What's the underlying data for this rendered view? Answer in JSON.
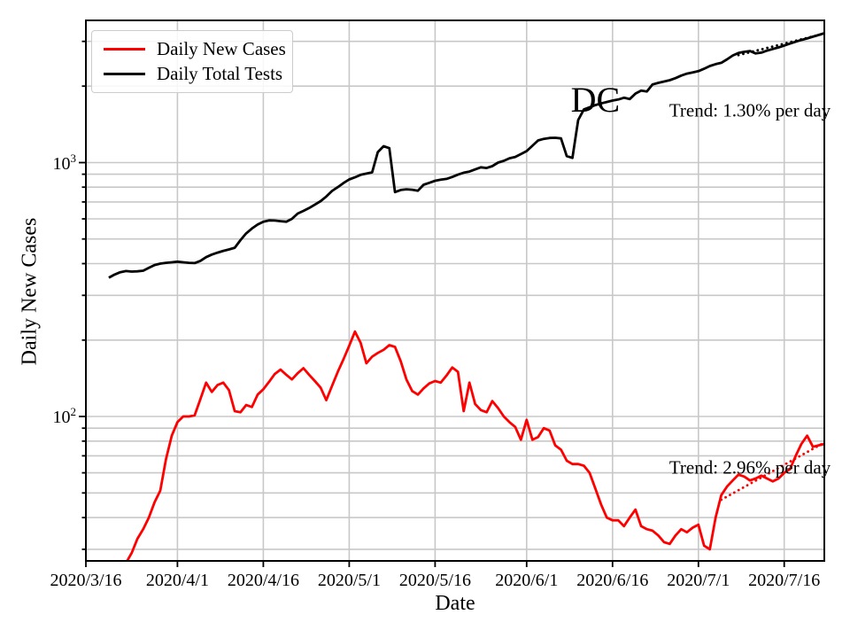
{
  "chart_data": {
    "type": "line",
    "title": "",
    "xlabel": "Date",
    "ylabel": "Daily New Cases",
    "y_scale": "log",
    "ylim": [
      27,
      3630
    ],
    "xlim": [
      "2020/3/16",
      "2020/7/23"
    ],
    "grid": "on",
    "legend_position": "upper left",
    "grid_color": "#c8c8c8",
    "x_ticks": [
      "2020/3/16",
      "2020/4/1",
      "2020/4/16",
      "2020/5/1",
      "2020/5/16",
      "2020/6/1",
      "2020/6/16",
      "2020/7/1",
      "2020/7/16"
    ],
    "y_ticks": [
      {
        "value": 100,
        "base": "10",
        "exp": "2"
      },
      {
        "value": 1000,
        "base": "10",
        "exp": "3"
      }
    ],
    "legend": [
      {
        "label": "Daily New Cases",
        "color": "#ff0000"
      },
      {
        "label": "Daily Total Tests",
        "color": "#000000"
      }
    ],
    "annotations": [
      {
        "text": "DC",
        "date": "2020/6/13",
        "value": 1760,
        "size": 40
      },
      {
        "text": "Trend: 1.30% per day",
        "date": "2020/7/10",
        "value": 1600,
        "size": 21
      },
      {
        "text": "Trend: 2.96% per day",
        "date": "2020/7/10",
        "value": 63,
        "size": 21
      }
    ],
    "series": [
      {
        "name": "Daily New Cases",
        "color": "#ff0000",
        "style": "solid",
        "points": [
          [
            "2020/3/22",
            24
          ],
          [
            "2020/3/23",
            26.5
          ],
          [
            "2020/3/24",
            29
          ],
          [
            "2020/3/25",
            33
          ],
          [
            "2020/3/26",
            36
          ],
          [
            "2020/3/27",
            40
          ],
          [
            "2020/3/28",
            46
          ],
          [
            "2020/3/29",
            51
          ],
          [
            "2020/3/30",
            68
          ],
          [
            "2020/3/31",
            84
          ],
          [
            "2020/4/1",
            95
          ],
          [
            "2020/4/2",
            100
          ],
          [
            "2020/4/3",
            100
          ],
          [
            "2020/4/4",
            101
          ],
          [
            "2020/4/5",
            117
          ],
          [
            "2020/4/6",
            136
          ],
          [
            "2020/4/7",
            125
          ],
          [
            "2020/4/8",
            133
          ],
          [
            "2020/4/9",
            136
          ],
          [
            "2020/4/10",
            127
          ],
          [
            "2020/4/11",
            105
          ],
          [
            "2020/4/12",
            104
          ],
          [
            "2020/4/13",
            111
          ],
          [
            "2020/4/14",
            109
          ],
          [
            "2020/4/15",
            122
          ],
          [
            "2020/4/16",
            128
          ],
          [
            "2020/4/17",
            137
          ],
          [
            "2020/4/18",
            147
          ],
          [
            "2020/4/19",
            153
          ],
          [
            "2020/4/20",
            146
          ],
          [
            "2020/4/21",
            140
          ],
          [
            "2020/4/22",
            148
          ],
          [
            "2020/4/23",
            155
          ],
          [
            "2020/4/24",
            146
          ],
          [
            "2020/4/25",
            138
          ],
          [
            "2020/4/26",
            130
          ],
          [
            "2020/4/27",
            116
          ],
          [
            "2020/4/28",
            132
          ],
          [
            "2020/4/29",
            150
          ],
          [
            "2020/4/30",
            168
          ],
          [
            "2020/5/1",
            190
          ],
          [
            "2020/5/2",
            216
          ],
          [
            "2020/5/3",
            195
          ],
          [
            "2020/5/4",
            162
          ],
          [
            "2020/5/5",
            172
          ],
          [
            "2020/5/6",
            178
          ],
          [
            "2020/5/7",
            183
          ],
          [
            "2020/5/8",
            191
          ],
          [
            "2020/5/9",
            188
          ],
          [
            "2020/5/10",
            165
          ],
          [
            "2020/5/11",
            140
          ],
          [
            "2020/5/12",
            126
          ],
          [
            "2020/5/13",
            122
          ],
          [
            "2020/5/14",
            129
          ],
          [
            "2020/5/15",
            135
          ],
          [
            "2020/5/16",
            138
          ],
          [
            "2020/5/17",
            136
          ],
          [
            "2020/5/18",
            145
          ],
          [
            "2020/5/19",
            156
          ],
          [
            "2020/5/20",
            150
          ],
          [
            "2020/5/21",
            105
          ],
          [
            "2020/5/22",
            136
          ],
          [
            "2020/5/23",
            112
          ],
          [
            "2020/5/24",
            106
          ],
          [
            "2020/5/25",
            104
          ],
          [
            "2020/5/26",
            115
          ],
          [
            "2020/5/27",
            108
          ],
          [
            "2020/5/28",
            100
          ],
          [
            "2020/5/29",
            95
          ],
          [
            "2020/5/30",
            91
          ],
          [
            "2020/5/31",
            81
          ],
          [
            "2020/6/1",
            97
          ],
          [
            "2020/6/2",
            81
          ],
          [
            "2020/6/3",
            83
          ],
          [
            "2020/6/4",
            90
          ],
          [
            "2020/6/5",
            88
          ],
          [
            "2020/6/6",
            77
          ],
          [
            "2020/6/7",
            74
          ],
          [
            "2020/6/8",
            67
          ],
          [
            "2020/6/9",
            65
          ],
          [
            "2020/6/10",
            65
          ],
          [
            "2020/6/11",
            64
          ],
          [
            "2020/6/12",
            60
          ],
          [
            "2020/6/13",
            52
          ],
          [
            "2020/6/14",
            45
          ],
          [
            "2020/6/15",
            40
          ],
          [
            "2020/6/16",
            39
          ],
          [
            "2020/6/17",
            39
          ],
          [
            "2020/6/18",
            37
          ],
          [
            "2020/6/19",
            40
          ],
          [
            "2020/6/20",
            43
          ],
          [
            "2020/6/21",
            37
          ],
          [
            "2020/6/22",
            36
          ],
          [
            "2020/6/23",
            35.5
          ],
          [
            "2020/6/24",
            34
          ],
          [
            "2020/6/25",
            32
          ],
          [
            "2020/6/26",
            31.5
          ],
          [
            "2020/6/27",
            34
          ],
          [
            "2020/6/28",
            36
          ],
          [
            "2020/6/29",
            35
          ],
          [
            "2020/6/30",
            36.5
          ],
          [
            "2020/7/1",
            37.5
          ],
          [
            "2020/7/2",
            31
          ],
          [
            "2020/7/3",
            30
          ],
          [
            "2020/7/4",
            40
          ],
          [
            "2020/7/5",
            49
          ],
          [
            "2020/7/6",
            53
          ],
          [
            "2020/7/7",
            56
          ],
          [
            "2020/7/8",
            59
          ],
          [
            "2020/7/9",
            58
          ],
          [
            "2020/7/10",
            56
          ],
          [
            "2020/7/11",
            57
          ],
          [
            "2020/7/12",
            58.5
          ],
          [
            "2020/7/13",
            57
          ],
          [
            "2020/7/14",
            55.5
          ],
          [
            "2020/7/15",
            57
          ],
          [
            "2020/7/16",
            60
          ],
          [
            "2020/7/17",
            62
          ],
          [
            "2020/7/18",
            70
          ],
          [
            "2020/7/19",
            78
          ],
          [
            "2020/7/20",
            84
          ],
          [
            "2020/7/21",
            76
          ],
          [
            "2020/7/22",
            77
          ],
          [
            "2020/7/23",
            78
          ]
        ]
      },
      {
        "name": "Daily Total Tests",
        "color": "#000000",
        "style": "solid",
        "points": [
          [
            "2020/3/20",
            352
          ],
          [
            "2020/3/21",
            362
          ],
          [
            "2020/3/22",
            370
          ],
          [
            "2020/3/23",
            374
          ],
          [
            "2020/3/24",
            372
          ],
          [
            "2020/3/25",
            373
          ],
          [
            "2020/3/26",
            375
          ],
          [
            "2020/3/27",
            385
          ],
          [
            "2020/3/28",
            395
          ],
          [
            "2020/3/29",
            400
          ],
          [
            "2020/3/30",
            403
          ],
          [
            "2020/3/31",
            405
          ],
          [
            "2020/4/1",
            407
          ],
          [
            "2020/4/2",
            405
          ],
          [
            "2020/4/3",
            403
          ],
          [
            "2020/4/4",
            402
          ],
          [
            "2020/4/5",
            410
          ],
          [
            "2020/4/6",
            424
          ],
          [
            "2020/4/7",
            434
          ],
          [
            "2020/4/8",
            442
          ],
          [
            "2020/4/9",
            449
          ],
          [
            "2020/4/10",
            455
          ],
          [
            "2020/4/11",
            462
          ],
          [
            "2020/4/12",
            495
          ],
          [
            "2020/4/13",
            526
          ],
          [
            "2020/4/14",
            550
          ],
          [
            "2020/4/15",
            570
          ],
          [
            "2020/4/16",
            585
          ],
          [
            "2020/4/17",
            592
          ],
          [
            "2020/4/18",
            591
          ],
          [
            "2020/4/19",
            588
          ],
          [
            "2020/4/20",
            585
          ],
          [
            "2020/4/21",
            600
          ],
          [
            "2020/4/22",
            630
          ],
          [
            "2020/4/23",
            645
          ],
          [
            "2020/4/24",
            662
          ],
          [
            "2020/4/25",
            683
          ],
          [
            "2020/4/26",
            705
          ],
          [
            "2020/4/27",
            735
          ],
          [
            "2020/4/28",
            773
          ],
          [
            "2020/4/29",
            800
          ],
          [
            "2020/4/30",
            830
          ],
          [
            "2020/5/1",
            858
          ],
          [
            "2020/5/2",
            875
          ],
          [
            "2020/5/3",
            895
          ],
          [
            "2020/5/4",
            905
          ],
          [
            "2020/5/5",
            915
          ],
          [
            "2020/5/6",
            1100
          ],
          [
            "2020/5/7",
            1160
          ],
          [
            "2020/5/8",
            1140
          ],
          [
            "2020/5/9",
            765
          ],
          [
            "2020/5/10",
            780
          ],
          [
            "2020/5/11",
            785
          ],
          [
            "2020/5/12",
            782
          ],
          [
            "2020/5/13",
            775
          ],
          [
            "2020/5/14",
            818
          ],
          [
            "2020/5/15",
            832
          ],
          [
            "2020/5/16",
            848
          ],
          [
            "2020/5/17",
            856
          ],
          [
            "2020/5/18",
            862
          ],
          [
            "2020/5/19",
            878
          ],
          [
            "2020/5/20",
            896
          ],
          [
            "2020/5/21",
            912
          ],
          [
            "2020/5/22",
            922
          ],
          [
            "2020/5/23",
            940
          ],
          [
            "2020/5/24",
            958
          ],
          [
            "2020/5/25",
            952
          ],
          [
            "2020/5/26",
            968
          ],
          [
            "2020/5/27",
            1000
          ],
          [
            "2020/5/28",
            1016
          ],
          [
            "2020/5/29",
            1040
          ],
          [
            "2020/5/30",
            1052
          ],
          [
            "2020/5/31",
            1080
          ],
          [
            "2020/6/1",
            1110
          ],
          [
            "2020/6/2",
            1165
          ],
          [
            "2020/6/3",
            1222
          ],
          [
            "2020/6/4",
            1240
          ],
          [
            "2020/6/5",
            1250
          ],
          [
            "2020/6/6",
            1252
          ],
          [
            "2020/6/7",
            1245
          ],
          [
            "2020/6/8",
            1060
          ],
          [
            "2020/6/9",
            1043
          ],
          [
            "2020/6/10",
            1470
          ],
          [
            "2020/6/11",
            1620
          ],
          [
            "2020/6/12",
            1650
          ],
          [
            "2020/6/13",
            1684
          ],
          [
            "2020/6/14",
            1710
          ],
          [
            "2020/6/15",
            1732
          ],
          [
            "2020/6/16",
            1754
          ],
          [
            "2020/6/17",
            1772
          ],
          [
            "2020/6/18",
            1800
          ],
          [
            "2020/6/19",
            1778
          ],
          [
            "2020/6/20",
            1870
          ],
          [
            "2020/6/21",
            1920
          ],
          [
            "2020/6/22",
            1905
          ],
          [
            "2020/6/23",
            2030
          ],
          [
            "2020/6/24",
            2060
          ],
          [
            "2020/6/25",
            2085
          ],
          [
            "2020/6/26",
            2110
          ],
          [
            "2020/6/27",
            2150
          ],
          [
            "2020/6/28",
            2200
          ],
          [
            "2020/6/29",
            2240
          ],
          [
            "2020/6/30",
            2265
          ],
          [
            "2020/7/1",
            2290
          ],
          [
            "2020/7/2",
            2340
          ],
          [
            "2020/7/3",
            2400
          ],
          [
            "2020/7/4",
            2440
          ],
          [
            "2020/7/5",
            2470
          ],
          [
            "2020/7/6",
            2550
          ],
          [
            "2020/7/7",
            2640
          ],
          [
            "2020/7/8",
            2700
          ],
          [
            "2020/7/9",
            2730
          ],
          [
            "2020/7/10",
            2750
          ],
          [
            "2020/7/11",
            2690
          ],
          [
            "2020/7/12",
            2710
          ],
          [
            "2020/7/13",
            2760
          ],
          [
            "2020/7/14",
            2800
          ],
          [
            "2020/7/15",
            2840
          ],
          [
            "2020/7/16",
            2890
          ],
          [
            "2020/7/17",
            2940
          ],
          [
            "2020/7/18",
            2990
          ],
          [
            "2020/7/19",
            3040
          ],
          [
            "2020/7/20",
            3080
          ],
          [
            "2020/7/21",
            3130
          ],
          [
            "2020/7/22",
            3180
          ],
          [
            "2020/7/23",
            3230
          ]
        ]
      },
      {
        "name": "cases-trend-2.96pct-per-day",
        "color": "#ff0000",
        "style": "dotted",
        "points": [
          [
            "2020/7/5",
            47
          ],
          [
            "2020/7/23",
            79
          ]
        ]
      },
      {
        "name": "tests-trend-1.30pct-per-day",
        "color": "#000000",
        "style": "dotted",
        "points": [
          [
            "2020/7/8",
            2650
          ],
          [
            "2020/7/23",
            3220
          ]
        ]
      }
    ]
  }
}
